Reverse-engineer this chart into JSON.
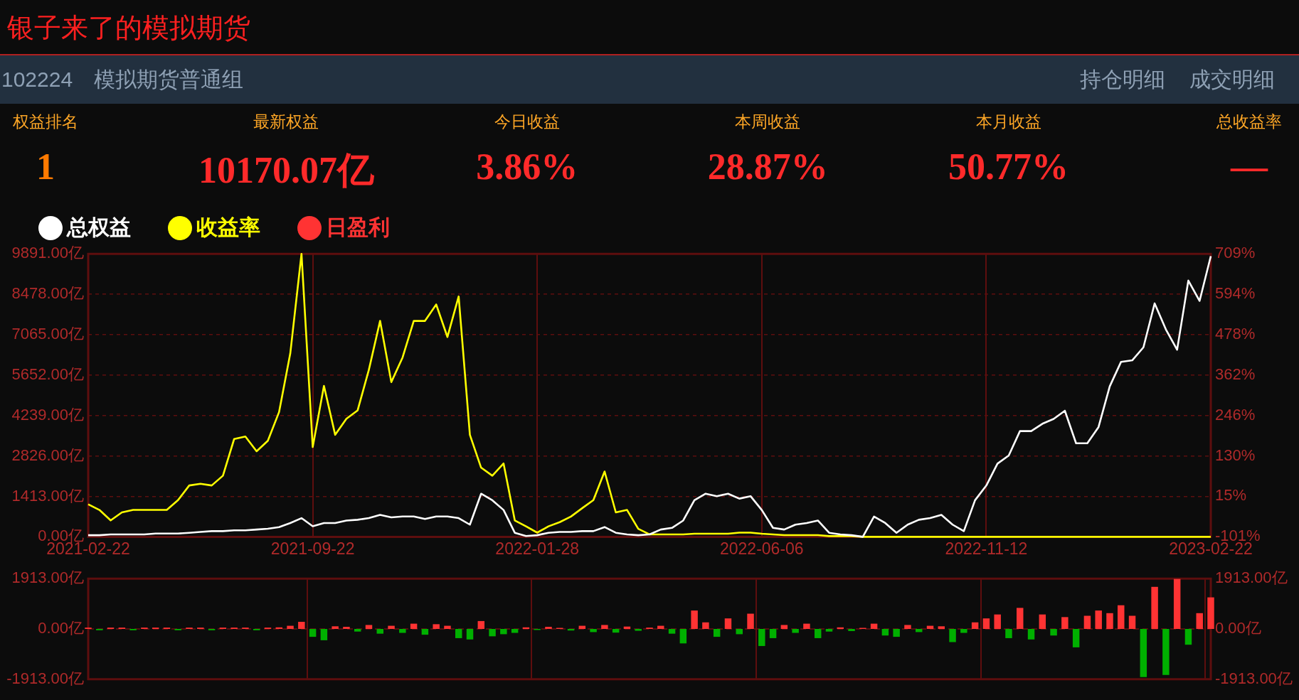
{
  "chart_data": [
    {
      "type": "other",
      "title": "银子来了的模拟期货",
      "subtitle": "102224　模拟期货普通组",
      "annotations": [
        "持仓明细",
        "成交明细"
      ],
      "categories": [
        "权益排名",
        "最新权益",
        "今日收益",
        "本周收益",
        "本月收益",
        "总收益率"
      ],
      "value_labels": [
        "1",
        "10170.07亿",
        "3.86%",
        "28.87%",
        "50.77%",
        "—"
      ],
      "colors": [
        "#ff7a00",
        "#ff2a2a",
        "#ff2a2a",
        "#ff2a2a",
        "#ff2a2a",
        "#ff2a2a"
      ]
    },
    {
      "type": "line",
      "categories": [
        "2021-02-22",
        null,
        null,
        null,
        null,
        null,
        null,
        null,
        null,
        null,
        null,
        null,
        null,
        null,
        null,
        null,
        null,
        null,
        null,
        null,
        "2021-09-22",
        null,
        null,
        null,
        null,
        null,
        null,
        null,
        null,
        null,
        null,
        null,
        null,
        null,
        null,
        null,
        null,
        null,
        null,
        null,
        "2022-01-28",
        null,
        null,
        null,
        null,
        null,
        null,
        null,
        null,
        null,
        null,
        null,
        null,
        null,
        null,
        null,
        null,
        null,
        null,
        null,
        "2022-06-06",
        null,
        null,
        null,
        null,
        null,
        null,
        null,
        null,
        null,
        null,
        null,
        null,
        null,
        null,
        null,
        null,
        null,
        null,
        null,
        "2022-11-12",
        null,
        null,
        null,
        null,
        null,
        null,
        null,
        null,
        null,
        null,
        null,
        null,
        null,
        null,
        null,
        null,
        null,
        null,
        null,
        "2023-02-22"
      ],
      "series": [
        {
          "name": "总权益",
          "color": "#ffffff",
          "values": [
            57,
            57,
            85,
            85,
            85,
            85,
            114,
            114,
            114,
            142,
            171,
            199,
            199,
            227,
            227,
            256,
            284,
            341,
            483,
            654,
            370,
            483,
            483,
            569,
            597,
            654,
            768,
            682,
            711,
            711,
            625,
            711,
            711,
            654,
            426,
            1507,
            1279,
            938,
            142,
            28,
            57,
            142,
            171,
            171,
            199,
            199,
            341,
            142,
            85,
            57,
            85,
            256,
            313,
            569,
            1279,
            1507,
            1422,
            1507,
            1336,
            1422,
            938,
            313,
            256,
            426,
            483,
            569,
            142,
            85,
            57,
            0,
            711,
            483,
            142,
            426,
            597,
            654,
            768,
            426,
            199,
            1279,
            1791,
            2559,
            2843,
            3696,
            3696,
            3952,
            4122,
            4407,
            3270,
            3270,
            3838,
            5260,
            6112,
            6169,
            6624,
            8159,
            7250,
            6539,
            8955,
            8245,
            9808
          ]
        },
        {
          "name": "收益率",
          "color": "#ffff00",
          "axis": "y2",
          "values": [
            -8,
            -24,
            -54,
            -31,
            -24,
            -24,
            -24,
            -24,
            4,
            46,
            51,
            46,
            74,
            179,
            186,
            144,
            174,
            256,
            424,
            709,
            156,
            331,
            191,
            237,
            261,
            377,
            517,
            342,
            412,
            517,
            517,
            564,
            471,
            587,
            191,
            97,
            74,
            109,
            -54,
            -71,
            -89,
            -71,
            -59,
            -43,
            -19,
            4,
            86,
            -31,
            -24,
            -78,
            -94,
            -94,
            -94,
            -94,
            -92,
            -92,
            -92,
            -92,
            -89,
            -89,
            -92,
            -94,
            -96,
            -96,
            -96,
            -96,
            -99,
            -99,
            -99,
            -101,
            -101,
            -101,
            -101,
            -101,
            -101,
            -101,
            -101,
            -101,
            -101,
            -101,
            -101,
            -101,
            -101,
            -101,
            -101,
            -101,
            -101,
            -101,
            -101,
            -101,
            -101,
            -101,
            -101,
            -101,
            -101,
            -101,
            -101,
            -101,
            -101,
            -101,
            -101
          ]
        }
      ],
      "ylim": [
        0,
        9891
      ],
      "yticks": [
        {
          "value": 0,
          "label": "0.00亿"
        },
        {
          "value": 1413,
          "label": "1413.00亿"
        },
        {
          "value": 2826,
          "label": "2826.00亿"
        },
        {
          "value": 4239,
          "label": "4239.00亿"
        },
        {
          "value": 5652,
          "label": "5652.00亿"
        },
        {
          "value": 7065,
          "label": "7065.00亿"
        },
        {
          "value": 8478,
          "label": "8478.00亿"
        },
        {
          "value": 9891,
          "label": "9891.00亿"
        }
      ],
      "y2lim": [
        -101,
        709
      ],
      "y2ticks": [
        {
          "value": -101,
          "label": "-101%"
        },
        {
          "value": 15,
          "label": "15%"
        },
        {
          "value": 130,
          "label": "130%"
        },
        {
          "value": 246,
          "label": "246%"
        },
        {
          "value": 362,
          "label": "362%"
        },
        {
          "value": 478,
          "label": "478%"
        },
        {
          "value": 594,
          "label": "594%"
        },
        {
          "value": 709,
          "label": "709%"
        }
      ],
      "grid": true,
      "legend": "top left",
      "marker": "none"
    },
    {
      "type": "bar",
      "categories": [
        "2021-02-22",
        null,
        null,
        null,
        null,
        null,
        null,
        null,
        null,
        null,
        null,
        null,
        null,
        null,
        null,
        null,
        null,
        null,
        null,
        null,
        "2021-09-22",
        null,
        null,
        null,
        null,
        null,
        null,
        null,
        null,
        null,
        null,
        null,
        null,
        null,
        null,
        null,
        null,
        null,
        null,
        null,
        "2022-01-28",
        null,
        null,
        null,
        null,
        null,
        null,
        null,
        null,
        null,
        null,
        null,
        null,
        null,
        null,
        null,
        null,
        null,
        null,
        null,
        "2022-06-06",
        null,
        null,
        null,
        null,
        null,
        null,
        null,
        null,
        null,
        null,
        null,
        null,
        null,
        null,
        null,
        null,
        null,
        null,
        null,
        "2022-11-12",
        null,
        null,
        null,
        null,
        null,
        null,
        null,
        null,
        null,
        null,
        null,
        null,
        null,
        null,
        null,
        null,
        null,
        null,
        null,
        "2023-02-22"
      ],
      "series": [
        {
          "name": "日盈利",
          "color": "#ff3333",
          "values": [
            50,
            -50,
            50,
            50,
            -50,
            50,
            50,
            50,
            -50,
            50,
            50,
            -50,
            50,
            50,
            50,
            -50,
            50,
            60,
            120,
            270,
            -300,
            -430,
            100,
            80,
            -100,
            150,
            -180,
            120,
            -150,
            200,
            -220,
            180,
            120,
            -350,
            -400,
            300,
            -280,
            -200,
            -150,
            60,
            -40,
            80,
            40,
            -60,
            120,
            -120,
            150,
            -140,
            90,
            -70,
            50,
            120,
            -180,
            -550,
            700,
            250,
            -300,
            400,
            -200,
            580,
            -650,
            -350,
            150,
            -150,
            200,
            -350,
            -100,
            60,
            -80,
            40,
            200,
            -250,
            -300,
            150,
            -120,
            120,
            100,
            -500,
            -150,
            250,
            400,
            550,
            -350,
            800,
            -400,
            550,
            -250,
            450,
            -700,
            500,
            700,
            600,
            900,
            500,
            -1830,
            1600,
            -1750,
            1900,
            -600,
            600,
            1200
          ],
          "colors": [
            "#ff3333",
            "#00b000",
            "#ff3333",
            "#ff3333",
            "#00b000",
            "#ff3333",
            "#ff3333",
            "#ff3333",
            "#00b000",
            "#ff3333",
            "#ff3333",
            "#00b000",
            "#ff3333",
            "#ff3333",
            "#ff3333",
            "#00b000",
            "#ff3333",
            "#ff3333",
            "#ff3333",
            "#ff3333",
            "#00b000",
            "#00b000",
            "#ff3333",
            "#ff3333",
            "#00b000",
            "#ff3333",
            "#00b000",
            "#ff3333",
            "#00b000",
            "#ff3333",
            "#00b000",
            "#ff3333",
            "#ff3333",
            "#00b000",
            "#00b000",
            "#ff3333",
            "#00b000",
            "#00b000",
            "#00b000",
            "#ff3333",
            "#00b000",
            "#ff3333",
            "#ff3333",
            "#00b000",
            "#ff3333",
            "#00b000",
            "#ff3333",
            "#00b000",
            "#ff3333",
            "#00b000",
            "#ff3333",
            "#ff3333",
            "#00b000",
            "#00b000",
            "#ff3333",
            "#ff3333",
            "#00b000",
            "#ff3333",
            "#00b000",
            "#ff3333",
            "#00b000",
            "#00b000",
            "#ff3333",
            "#00b000",
            "#ff3333",
            "#00b000",
            "#00b000",
            "#ff3333",
            "#00b000",
            "#ff3333",
            "#ff3333",
            "#00b000",
            "#00b000",
            "#ff3333",
            "#00b000",
            "#ff3333",
            "#ff3333",
            "#00b000",
            "#00b000",
            "#ff3333",
            "#ff3333",
            "#ff3333",
            "#00b000",
            "#ff3333",
            "#00b000",
            "#ff3333",
            "#00b000",
            "#ff3333",
            "#00b000",
            "#ff3333",
            "#ff3333",
            "#ff3333",
            "#ff3333",
            "#ff3333",
            "#00b000",
            "#ff3333",
            "#00b000",
            "#ff3333",
            "#00b000",
            "#ff3333",
            "#ff3333"
          ]
        }
      ],
      "ylim": [
        -1913,
        1913
      ],
      "yticks": [
        {
          "value": -1913,
          "label": "-1913.00亿"
        },
        {
          "value": 0,
          "label": "0.00亿"
        },
        {
          "value": 1913,
          "label": "1913.00亿"
        }
      ],
      "y2lim": [
        -1913,
        1913
      ],
      "y2ticks": [
        {
          "value": -1913,
          "label": "-1913.00亿"
        },
        {
          "value": 0,
          "label": "0.00亿"
        },
        {
          "value": 1913,
          "label": "1913.00亿"
        }
      ],
      "tick_labels": "y",
      "grid": "x",
      "legend": "top left",
      "ref_lines": [
        {
          "axis": "y",
          "value": 0,
          "color": "#6a1010",
          "line_style": "dashed"
        }
      ]
    }
  ]
}
